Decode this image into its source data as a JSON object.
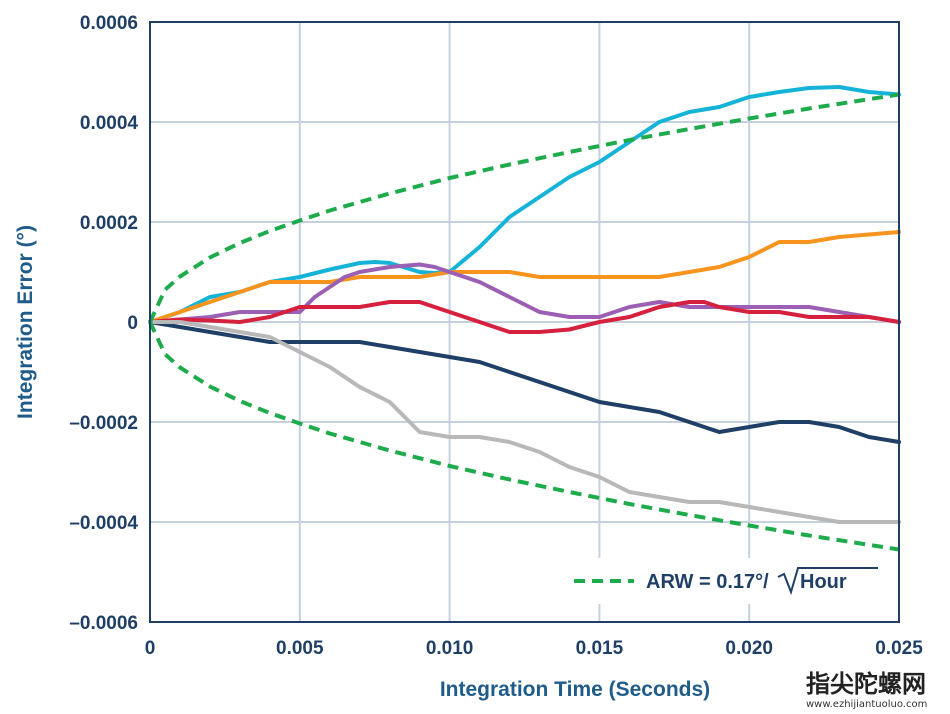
{
  "chart_data": {
    "type": "line",
    "title": "",
    "xlabel": "Integration Time (Seconds)",
    "ylabel": "Integration Error (°)",
    "xlim": [
      0,
      0.025
    ],
    "ylim": [
      -0.0006,
      0.0006
    ],
    "x_ticks": [
      0,
      0.005,
      0.01,
      0.015,
      0.02,
      0.025
    ],
    "x_tick_labels": [
      "0",
      "0.005",
      "0.010",
      "0.015",
      "0.020",
      "0.025"
    ],
    "y_ticks": [
      0.0006,
      0.0004,
      0.0002,
      0,
      -0.0002,
      -0.0004,
      -0.0006
    ],
    "y_tick_labels": [
      "0.0006",
      "0.0004",
      "0.0002",
      "0",
      "–0.0002",
      "–0.0004",
      "–0.0006"
    ],
    "grid": true,
    "legend": {
      "placement": "bottom-right",
      "entries": [
        "ARW = 0.17°/",
        "Hour"
      ]
    },
    "series": [
      {
        "color": "#15b3d8",
        "x": [
          0,
          0.001,
          0.002,
          0.003,
          0.004,
          0.005,
          0.006,
          0.007,
          0.0075,
          0.008,
          0.009,
          0.0095,
          0.01,
          0.011,
          0.012,
          0.013,
          0.014,
          0.015,
          0.016,
          0.017,
          0.018,
          0.019,
          0.02,
          0.021,
          0.022,
          0.023,
          0.024,
          0.025
        ],
        "y": [
          0,
          2e-05,
          5e-05,
          6e-05,
          8e-05,
          9e-05,
          0.000105,
          0.000118,
          0.00012,
          0.000118,
          0.0001,
          9.8e-05,
          0.0001,
          0.00015,
          0.00021,
          0.00025,
          0.00029,
          0.00032,
          0.00036,
          0.0004,
          0.00042,
          0.00043,
          0.00045,
          0.00046,
          0.000468,
          0.00047,
          0.00046,
          0.000455
        ]
      },
      {
        "color": "#f7941d",
        "x": [
          0,
          0.001,
          0.002,
          0.003,
          0.004,
          0.005,
          0.006,
          0.007,
          0.008,
          0.009,
          0.01,
          0.011,
          0.012,
          0.013,
          0.014,
          0.015,
          0.016,
          0.017,
          0.018,
          0.019,
          0.02,
          0.021,
          0.022,
          0.023,
          0.024,
          0.025
        ],
        "y": [
          0,
          2e-05,
          4e-05,
          6e-05,
          8e-05,
          8e-05,
          8e-05,
          9e-05,
          9e-05,
          9e-05,
          0.0001,
          0.0001,
          0.0001,
          9e-05,
          9e-05,
          9e-05,
          9e-05,
          9e-05,
          0.0001,
          0.00011,
          0.00013,
          0.00016,
          0.00016,
          0.00017,
          0.000175,
          0.00018
        ]
      },
      {
        "color": "#9b5fb4",
        "x": [
          0,
          0.002,
          0.003,
          0.004,
          0.005,
          0.0055,
          0.006,
          0.0065,
          0.007,
          0.008,
          0.009,
          0.0095,
          0.01,
          0.011,
          0.012,
          0.013,
          0.014,
          0.015,
          0.016,
          0.017,
          0.018,
          0.019,
          0.02,
          0.021,
          0.022,
          0.023,
          0.024,
          0.025
        ],
        "y": [
          0,
          1e-05,
          2e-05,
          2e-05,
          2e-05,
          5e-05,
          7e-05,
          9e-05,
          0.0001,
          0.00011,
          0.000115,
          0.00011,
          0.0001,
          8e-05,
          5e-05,
          2e-05,
          1e-05,
          1e-05,
          3e-05,
          4e-05,
          3e-05,
          3e-05,
          3e-05,
          3e-05,
          3e-05,
          2e-05,
          1e-05,
          0
        ]
      },
      {
        "color": "#d6213e",
        "x": [
          0,
          0.001,
          0.002,
          0.003,
          0.004,
          0.005,
          0.006,
          0.007,
          0.008,
          0.009,
          0.01,
          0.011,
          0.012,
          0.013,
          0.014,
          0.015,
          0.016,
          0.017,
          0.018,
          0.0185,
          0.019,
          0.02,
          0.021,
          0.022,
          0.023,
          0.024,
          0.025
        ],
        "y": [
          0,
          5e-06,
          3e-06,
          0,
          1e-05,
          3e-05,
          3e-05,
          3e-05,
          4e-05,
          4e-05,
          2e-05,
          0,
          -2e-05,
          -2e-05,
          -1.5e-05,
          0,
          1e-05,
          3e-05,
          4e-05,
          4e-05,
          3e-05,
          2e-05,
          2e-05,
          1e-05,
          1e-05,
          1e-05,
          0
        ]
      },
      {
        "color": "#1f3f66",
        "x": [
          0,
          0.001,
          0.002,
          0.003,
          0.004,
          0.005,
          0.006,
          0.007,
          0.008,
          0.009,
          0.01,
          0.011,
          0.012,
          0.013,
          0.014,
          0.015,
          0.016,
          0.017,
          0.018,
          0.019,
          0.02,
          0.021,
          0.022,
          0.023,
          0.024,
          0.025
        ],
        "y": [
          0,
          -1e-05,
          -2e-05,
          -3e-05,
          -4e-05,
          -4e-05,
          -4e-05,
          -4e-05,
          -5e-05,
          -6e-05,
          -7e-05,
          -8e-05,
          -0.0001,
          -0.00012,
          -0.00014,
          -0.00016,
          -0.00017,
          -0.00018,
          -0.0002,
          -0.00022,
          -0.00021,
          -0.0002,
          -0.0002,
          -0.00021,
          -0.00023,
          -0.00024
        ]
      },
      {
        "color": "#b8b8b8",
        "x": [
          0,
          0.001,
          0.002,
          0.003,
          0.004,
          0.005,
          0.006,
          0.007,
          0.008,
          0.0085,
          0.009,
          0.01,
          0.011,
          0.012,
          0.013,
          0.014,
          0.015,
          0.016,
          0.017,
          0.018,
          0.019,
          0.02,
          0.021,
          0.022,
          0.023,
          0.024,
          0.025
        ],
        "y": [
          0,
          0,
          -1e-05,
          -2e-05,
          -3e-05,
          -6e-05,
          -9e-05,
          -0.00013,
          -0.00016,
          -0.00019,
          -0.00022,
          -0.00023,
          -0.00023,
          -0.00024,
          -0.00026,
          -0.00029,
          -0.00031,
          -0.00034,
          -0.00035,
          -0.00036,
          -0.00036,
          -0.00037,
          -0.00038,
          -0.00039,
          -0.0004,
          -0.0004,
          -0.0004
        ]
      },
      {
        "name": "ARW = 0.17°/√Hour",
        "color": "#1eab4b",
        "style": "dashed",
        "formula": "±0.000455·sqrt(t/0.025)",
        "x": [
          0,
          0.0005,
          0.001,
          0.002,
          0.003,
          0.004,
          0.005,
          0.006,
          0.008,
          0.01,
          0.012,
          0.014,
          0.016,
          0.018,
          0.02,
          0.022,
          0.025
        ],
        "y_upper": [
          0,
          6.44e-05,
          9.1e-05,
          0.000129,
          0.000158,
          0.000182,
          0.000203,
          0.000223,
          0.000257,
          0.000288,
          0.000315,
          0.00034,
          0.000364,
          0.000386,
          0.000407,
          0.000427,
          0.000455
        ],
        "y_lower": [
          0,
          -6.44e-05,
          -9.1e-05,
          -0.000129,
          -0.000158,
          -0.000182,
          -0.000203,
          -0.000223,
          -0.000257,
          -0.000288,
          -0.000315,
          -0.00034,
          -0.000364,
          -0.000386,
          -0.000407,
          -0.000427,
          -0.000455
        ]
      }
    ]
  },
  "watermark": {
    "main": "指尖陀螺网",
    "sub": "www.ezhijiantuoluo.com"
  }
}
